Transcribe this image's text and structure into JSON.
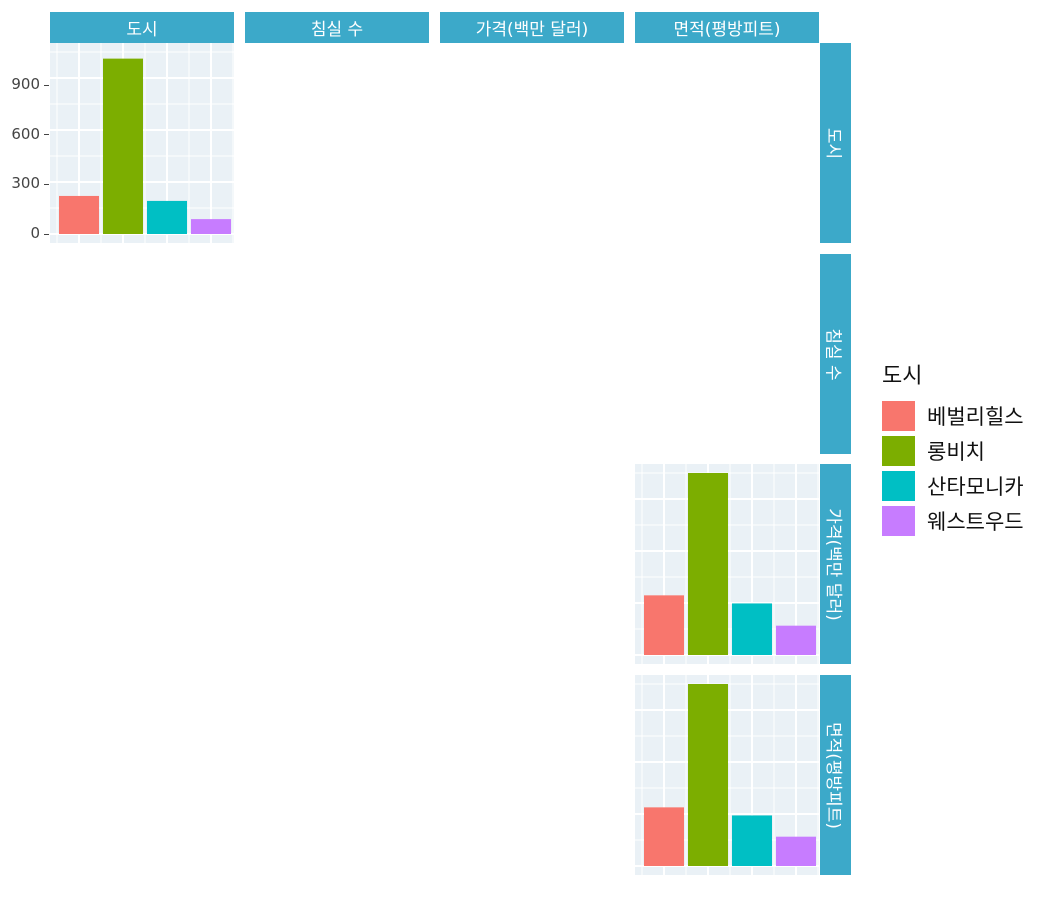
{
  "column_strips": [
    "도시",
    "침실 수",
    "가격(백만 달러)",
    "면적(평방피트)"
  ],
  "row_strips": [
    "도시",
    "침실 수",
    "가격(백만 달러)",
    "면적(평방피트)"
  ],
  "legend": {
    "title": "도시",
    "items": [
      {
        "label": "베벌리힐스",
        "color": "#f8766d"
      },
      {
        "label": "롱비치",
        "color": "#7cae00"
      },
      {
        "label": "산타모니카",
        "color": "#00bfc4"
      },
      {
        "label": "웨스트우드",
        "color": "#c77cff"
      }
    ]
  },
  "chart_data": [
    {
      "type": "bar",
      "facet_row": "도시",
      "facet_col": "도시",
      "categories": [
        "베벌리힐스",
        "롱비치",
        "산타모니카",
        "웨스트우드"
      ],
      "values": [
        230,
        1060,
        200,
        90
      ],
      "ylim": [
        0,
        1100
      ],
      "yticks": [
        "0",
        "300",
        "600",
        "900"
      ],
      "grid": true
    },
    {
      "type": "bar",
      "facet_row": "가격(백만 달러)",
      "facet_col": "면적(평방피트)",
      "categories": [
        "베벌리힐스",
        "롱비치",
        "산타모니카",
        "웨스트우드"
      ],
      "values": [
        59,
        180,
        51,
        29
      ],
      "grid": true
    },
    {
      "type": "bar",
      "facet_row": "면적(평방피트)",
      "facet_col": "면적(평방피트)",
      "categories": [
        "베벌리힐스",
        "롱비치",
        "산타모니카",
        "웨스트우드"
      ],
      "values": [
        58,
        180,
        50,
        29
      ],
      "grid": true
    }
  ]
}
